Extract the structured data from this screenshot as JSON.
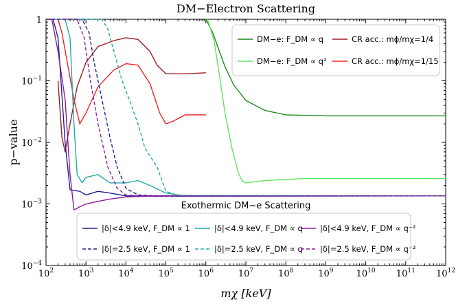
{
  "chart_data": {
    "type": "line",
    "title": "DM−Electron Scattering",
    "xlabel": "mχ [keV]",
    "ylabel": "p−value",
    "x_scale": "log",
    "y_scale": "log",
    "xlim": [
      100,
      1000000000000
    ],
    "ylim": [
      0.0001,
      1
    ],
    "x_ticks": [
      {
        "value": 100,
        "base": "10",
        "exp": "2"
      },
      {
        "value": 1000,
        "base": "10",
        "exp": "3"
      },
      {
        "value": 10000,
        "base": "10",
        "exp": "4"
      },
      {
        "value": 100000,
        "base": "10",
        "exp": "5"
      },
      {
        "value": 1000000,
        "base": "10",
        "exp": "6"
      },
      {
        "value": 10000000,
        "base": "10",
        "exp": "7"
      },
      {
        "value": 100000000,
        "base": "10",
        "exp": "8"
      },
      {
        "value": 1000000000,
        "base": "10",
        "exp": "9"
      },
      {
        "value": 10000000000,
        "base": "10",
        "exp": "10"
      },
      {
        "value": 100000000000,
        "base": "10",
        "exp": "11"
      },
      {
        "value": 1000000000000,
        "base": "10",
        "exp": "12"
      }
    ],
    "y_ticks": [
      {
        "value": 0.0001,
        "base": "10",
        "exp": "−4"
      },
      {
        "value": 0.001,
        "base": "10",
        "exp": "−3"
      },
      {
        "value": 0.01,
        "base": "10",
        "exp": "−2"
      },
      {
        "value": 0.1,
        "base": "10",
        "exp": "−1"
      },
      {
        "value": 1,
        "base": "1",
        "exp": ""
      }
    ],
    "annotation": "Exothermic DM−e Scattering",
    "legend_top": {
      "placement": "top-right",
      "entries": [
        "dm_q",
        "dm_q2",
        "cr_14",
        "cr_115"
      ]
    },
    "legend_bottom": {
      "placement": "bottom-center",
      "entries": [
        "exo49_1",
        "exo49_q",
        "exo49_qm2",
        "exo25_1",
        "exo25_q",
        "exo25_qm2"
      ]
    },
    "series": [
      {
        "id": "dm_q",
        "name": "DM−e: F_DM ∝ q",
        "color": "#1a8a1a",
        "dash": false,
        "points": [
          [
            1000000,
            1
          ],
          [
            1500000,
            0.6
          ],
          [
            2000000,
            0.35
          ],
          [
            3000000,
            0.17
          ],
          [
            5000000,
            0.085
          ],
          [
            10000000,
            0.048
          ],
          [
            30000000,
            0.033
          ],
          [
            100000000,
            0.028
          ],
          [
            1000000000,
            0.027
          ],
          [
            1000000000000,
            0.027
          ]
        ]
      },
      {
        "id": "dm_q2",
        "name": "DM−e: F_DM ∝ q²",
        "color": "#5ce65c",
        "dash": false,
        "points": [
          [
            1100000,
            1
          ],
          [
            1600000,
            0.45
          ],
          [
            2200000,
            0.12
          ],
          [
            3000000,
            0.03
          ],
          [
            4500000,
            0.008
          ],
          [
            6500000,
            0.0032
          ],
          [
            8000000,
            0.0024
          ],
          [
            10000000,
            0.0022
          ],
          [
            30000000,
            0.0024
          ],
          [
            300000000,
            0.0026
          ],
          [
            1000000000000,
            0.0026
          ]
        ]
      },
      {
        "id": "cr_14",
        "name": "CR acc.: mϕ/mχ=1/4",
        "color": "#9e1c1c",
        "dash": false,
        "points": [
          [
            200,
            0.1
          ],
          [
            250,
            0.012
          ],
          [
            300,
            0.007
          ],
          [
            400,
            0.02
          ],
          [
            600,
            0.08
          ],
          [
            1000,
            0.2
          ],
          [
            2000,
            0.36
          ],
          [
            5000,
            0.45
          ],
          [
            10000,
            0.5
          ],
          [
            20000,
            0.47
          ],
          [
            40000,
            0.3
          ],
          [
            60000,
            0.18
          ],
          [
            100000,
            0.13
          ],
          [
            300000,
            0.13
          ],
          [
            1000000,
            0.135
          ]
        ]
      },
      {
        "id": "cr_115",
        "name": "CR acc.: mϕ/mχ=1/15",
        "color": "#f02020",
        "dash": false,
        "points": [
          [
            200,
            1
          ],
          [
            250,
            0.6
          ],
          [
            350,
            0.18
          ],
          [
            500,
            0.05
          ],
          [
            700,
            0.02
          ],
          [
            1000,
            0.03
          ],
          [
            2000,
            0.08
          ],
          [
            5000,
            0.15
          ],
          [
            10000,
            0.19
          ],
          [
            20000,
            0.18
          ],
          [
            40000,
            0.09
          ],
          [
            70000,
            0.03
          ],
          [
            100000,
            0.02
          ],
          [
            150000,
            0.022
          ],
          [
            300000,
            0.028
          ],
          [
            1000000,
            0.028
          ]
        ]
      },
      {
        "id": "exo49_1",
        "name": "|δ|<4.9 keV, F_DM ∝ 1",
        "color": "#1e1e96",
        "dash": false,
        "points": [
          [
            100,
            1
          ],
          [
            150,
            1
          ],
          [
            200,
            0.5
          ],
          [
            300,
            0.01
          ],
          [
            400,
            0.0017
          ],
          [
            700,
            0.0016
          ],
          [
            1000,
            0.0014
          ],
          [
            2000,
            0.0016
          ],
          [
            4000,
            0.0015
          ],
          [
            10000,
            0.00135
          ],
          [
            1000000000000,
            0.00135
          ]
        ]
      },
      {
        "id": "exo49_q",
        "name": "|δ|<4.9 keV, F_DM ∝ q",
        "color": "#20aaaa",
        "dash": false,
        "points": [
          [
            100,
            1
          ],
          [
            300,
            1
          ],
          [
            400,
            0.5
          ],
          [
            500,
            0.02
          ],
          [
            600,
            0.003
          ],
          [
            800,
            0.0022
          ],
          [
            1000,
            0.0027
          ],
          [
            2000,
            0.003
          ],
          [
            4000,
            0.0022
          ],
          [
            10000,
            0.0022
          ],
          [
            20000,
            0.0024
          ],
          [
            40000,
            0.002
          ],
          [
            100000,
            0.0015
          ],
          [
            300000,
            0.00135
          ],
          [
            1000000000000,
            0.00135
          ]
        ]
      },
      {
        "id": "exo49_qm2",
        "name": "|δ|<4.9 keV, F_DM ∝ q⁻²",
        "color": "#8a1a96",
        "dash": false,
        "points": [
          [
            100,
            1
          ],
          [
            140,
            1
          ],
          [
            200,
            0.3
          ],
          [
            300,
            0.05
          ],
          [
            400,
            0.003
          ],
          [
            500,
            0.0008
          ],
          [
            700,
            0.0009
          ],
          [
            1000,
            0.001
          ],
          [
            2000,
            0.0011
          ],
          [
            4000,
            0.0012
          ],
          [
            10000,
            0.0013
          ],
          [
            30000,
            0.00133
          ],
          [
            1000000000000,
            0.00135
          ]
        ]
      },
      {
        "id": "exo25_1",
        "name": "|δ|=2.5 keV, F_DM ∝ 1",
        "color": "#1e1e96",
        "dash": true,
        "points": [
          [
            100,
            1
          ],
          [
            800,
            1
          ],
          [
            1200,
            0.6
          ],
          [
            1600,
            0.2
          ],
          [
            2500,
            0.05
          ],
          [
            4000,
            0.012
          ],
          [
            6000,
            0.004
          ],
          [
            10000,
            0.0018
          ],
          [
            20000,
            0.0014
          ],
          [
            50000,
            0.00135
          ],
          [
            1000000000000,
            0.00135
          ]
        ]
      },
      {
        "id": "exo25_q",
        "name": "|δ|=2.5 keV, F_DM ∝ q",
        "color": "#20aaaa",
        "dash": true,
        "points": [
          [
            100,
            1
          ],
          [
            2500,
            1
          ],
          [
            3500,
            0.7
          ],
          [
            5000,
            0.3
          ],
          [
            8000,
            0.1
          ],
          [
            12000,
            0.05
          ],
          [
            20000,
            0.02
          ],
          [
            30000,
            0.008
          ],
          [
            60000,
            0.004
          ],
          [
            100000,
            0.0016
          ],
          [
            200000,
            0.00138
          ],
          [
            1000000000000,
            0.00135
          ]
        ]
      },
      {
        "id": "exo25_qm2",
        "name": "|δ|=2.5 keV, F_DM ∝ q⁻²",
        "color": "#8a1a96",
        "dash": true,
        "points": [
          [
            100,
            1
          ],
          [
            600,
            1
          ],
          [
            900,
            0.5
          ],
          [
            1300,
            0.1
          ],
          [
            2000,
            0.02
          ],
          [
            3500,
            0.004
          ],
          [
            6000,
            0.0018
          ],
          [
            10000,
            0.0014
          ],
          [
            20000,
            0.00135
          ],
          [
            1000000000000,
            0.00135
          ]
        ]
      }
    ]
  }
}
